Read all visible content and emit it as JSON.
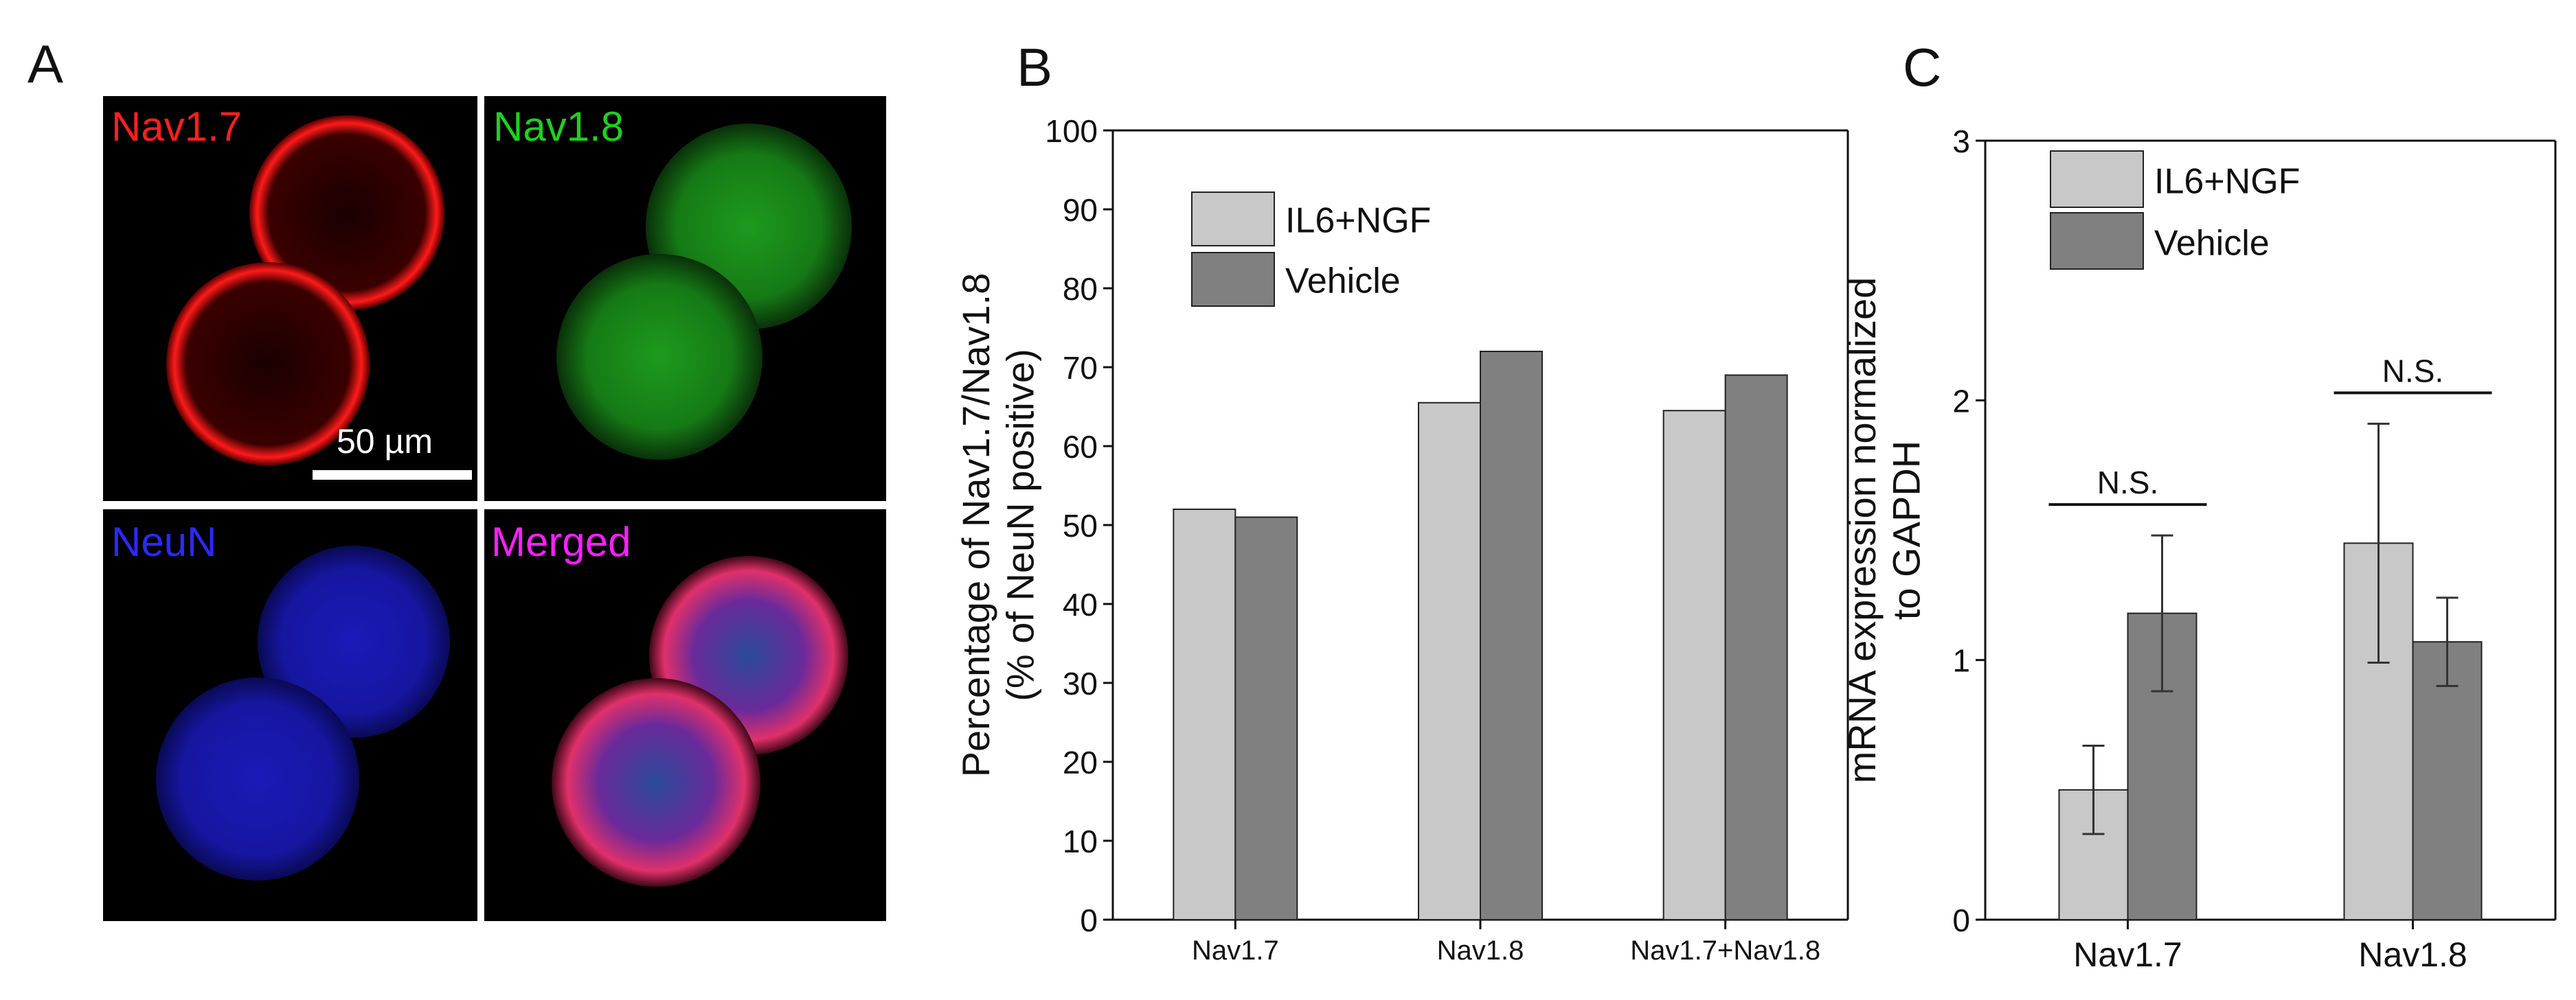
{
  "panel_letters": {
    "a": "A",
    "b": "B",
    "c": "C"
  },
  "micrographs": [
    {
      "label": "Nav1.7",
      "label_color": "#ff2020",
      "stain": "red"
    },
    {
      "label": "Nav1.8",
      "label_color": "#20d020",
      "stain": "green"
    },
    {
      "label": "NeuN",
      "label_color": "#2a2aff",
      "stain": "blue"
    },
    {
      "label": "Merged",
      "label_color": "#ff20ff",
      "stain": "merged"
    }
  ],
  "scale_bar_text": "50 µm",
  "colors": {
    "il6_ngf_bar": "#c8c8c8",
    "vehicle_bar": "#808080",
    "bar_stroke": "#222222"
  },
  "chart_data": [
    {
      "type": "bar",
      "ylabel": "Percentage of Nav1.7/Nav1.8\n(% of NeuN positive)",
      "xlabel": "",
      "categories": [
        "Nav1.7",
        "Nav1.8",
        "Nav1.7+Nav1.8"
      ],
      "series": [
        {
          "name": "IL6+NGF",
          "values": [
            52,
            65.5,
            64.5
          ]
        },
        {
          "name": "Vehicle",
          "values": [
            51,
            72,
            69
          ]
        }
      ],
      "ylim": [
        0,
        100
      ],
      "yticks": [
        0,
        10,
        20,
        30,
        40,
        50,
        60,
        70,
        80,
        90,
        100
      ],
      "legend": "top-left",
      "grid": false
    },
    {
      "type": "bar",
      "ylabel": "mRNA expression normalized\nto GAPDH",
      "xlabel": "",
      "categories": [
        "Nav1.7",
        "Nav1.8"
      ],
      "series": [
        {
          "name": "IL6+NGF",
          "values": [
            0.5,
            1.45
          ],
          "error": [
            0.17,
            0.46
          ]
        },
        {
          "name": "Vehicle",
          "values": [
            1.18,
            1.07
          ],
          "error": [
            0.3,
            0.17
          ]
        }
      ],
      "ylim": [
        0,
        3
      ],
      "yticks": [
        0,
        1,
        2,
        3
      ],
      "legend": "top-left",
      "grid": false,
      "annotations": [
        "N.S.",
        "N.S."
      ]
    }
  ]
}
